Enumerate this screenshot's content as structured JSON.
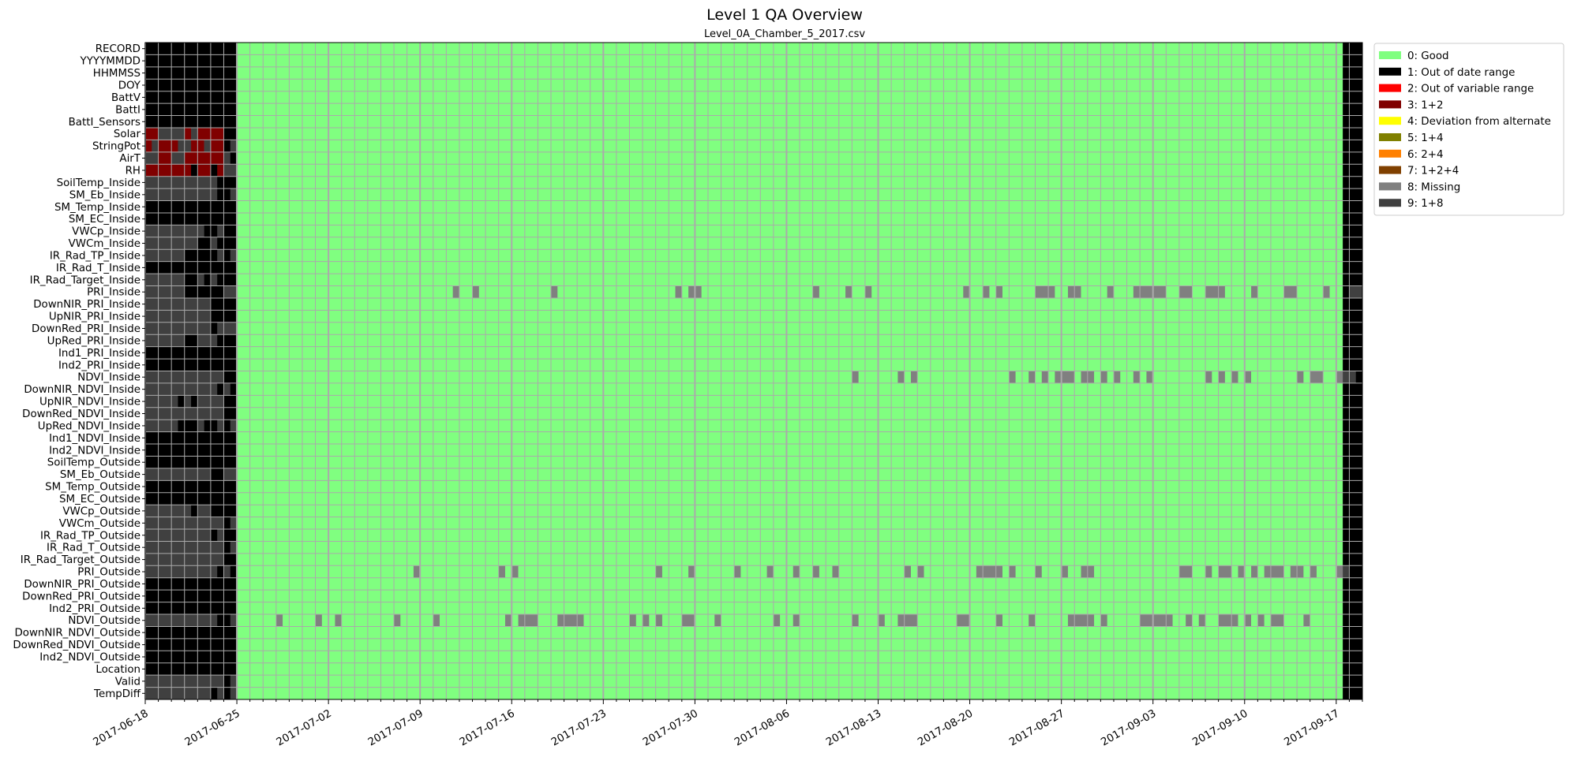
{
  "chart_data": {
    "type": "heatmap",
    "title": "Level 1 QA Overview",
    "subtitle": "Level_0A_Chamber_5_2017.csv",
    "x_start": "2017-06-18",
    "x_end": "2017-09-19",
    "first_green_date": "2017-06-25",
    "last_green_date": "2017-09-17",
    "x_ticks": [
      "2017-06-18",
      "2017-06-25",
      "2017-07-02",
      "2017-07-09",
      "2017-07-16",
      "2017-07-23",
      "2017-07-30",
      "2017-08-06",
      "2017-08-13",
      "2017-08-20",
      "2017-08-27",
      "2017-09-03",
      "2017-09-10",
      "2017-09-17"
    ],
    "rows": [
      "RECORD",
      "YYYYMMDD",
      "HHMMSS",
      "DOY",
      "BattV",
      "BattI",
      "BattI_Sensors",
      "Solar",
      "StringPot",
      "AirT",
      "RH",
      "SoilTemp_Inside",
      "SM_Eb_Inside",
      "SM_Temp_Inside",
      "SM_EC_Inside",
      "VWCp_Inside",
      "VWCm_Inside",
      "IR_Rad_TP_Inside",
      "IR_Rad_T_Inside",
      "IR_Rad_Target_Inside",
      "PRI_Inside",
      "DownNIR_PRI_Inside",
      "UpNIR_PRI_Inside",
      "DownRed_PRI_Inside",
      "UpRed_PRI_Inside",
      "Ind1_PRI_Inside",
      "Ind2_PRI_Inside",
      "NDVI_Inside",
      "DownNIR_NDVI_Inside",
      "UpNIR_NDVI_Inside",
      "DownRed_NDVI_Inside",
      "UpRed_NDVI_Inside",
      "Ind1_NDVI_Inside",
      "Ind2_NDVI_Inside",
      "SoilTemp_Outside",
      "SM_Eb_Outside",
      "SM_Temp_Outside",
      "SM_EC_Outside",
      "VWCp_Outside",
      "VWCm_Outside",
      "IR_Rad_TP_Outside",
      "IR_Rad_T_Outside",
      "IR_Rad_Target_Outside",
      "PRI_Outside",
      "DownNIR_PRI_Outside",
      "DownRed_PRI_Outside",
      "Ind2_PRI_Outside",
      "NDVI_Outside",
      "DownNIR_NDVI_Outside",
      "DownRed_NDVI_Outside",
      "Ind2_NDVI_Outside",
      "Location",
      "Valid",
      "TempDiff"
    ],
    "legend": [
      {
        "label": "0: Good",
        "color": "#80ff80"
      },
      {
        "label": "1: Out of date range",
        "color": "#000000"
      },
      {
        "label": "2: Out of variable range",
        "color": "#ff0000"
      },
      {
        "label": "3: 1+2",
        "color": "#800000"
      },
      {
        "label": "4: Deviation from alternate",
        "color": "#ffff00"
      },
      {
        "label": "5: 1+4",
        "color": "#808000"
      },
      {
        "label": "6: 2+4",
        "color": "#ff8000"
      },
      {
        "label": "7: 1+2+4",
        "color": "#804000"
      },
      {
        "label": "8: Missing",
        "color": "#808080"
      },
      {
        "label": "9: 1+8",
        "color": "#404040"
      }
    ],
    "legend_position": "upper-right-outside",
    "grid": true,
    "missing_rows": [
      "PRI_Inside",
      "NDVI_Inside",
      "PRI_Outside",
      "NDVI_Outside"
    ],
    "early_pattern": {
      "dark_gray_rows": [
        "Solar",
        "StringPot",
        "AirT",
        "RH",
        "SoilTemp_Inside",
        "SM_Eb_Inside",
        "VWCp_Inside",
        "VWCm_Inside",
        "IR_Rad_TP_Inside",
        "IR_Rad_Target_Inside",
        "PRI_Inside",
        "DownNIR_PRI_Inside",
        "UpNIR_PRI_Inside",
        "DownRed_PRI_Inside",
        "UpRed_PRI_Inside",
        "NDVI_Inside",
        "DownNIR_NDVI_Inside",
        "UpNIR_NDVI_Inside",
        "DownRed_NDVI_Inside",
        "UpRed_NDVI_Inside",
        "SM_Eb_Outside",
        "VWCp_Outside",
        "VWCm_Outside",
        "IR_Rad_TP_Outside",
        "IR_Rad_T_Outside",
        "IR_Rad_Target_Outside",
        "PRI_Outside",
        "NDVI_Outside",
        "Valid",
        "TempDiff"
      ],
      "red_rows": [
        "Solar",
        "StringPot",
        "AirT",
        "RH"
      ]
    }
  }
}
